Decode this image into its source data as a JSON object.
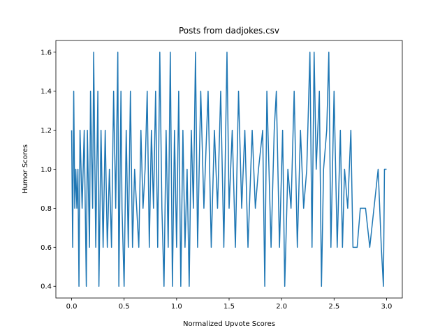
{
  "chart_data": {
    "type": "line",
    "title": "Posts from dadjokes.csv",
    "x_label": "Normalized Upvote Scores",
    "y_label": "Humor Scores",
    "color": "#1f77b4",
    "x": [
      0.0,
      0.01,
      0.02,
      0.03,
      0.04,
      0.05,
      0.06,
      0.07,
      0.08,
      0.1,
      0.12,
      0.14,
      0.15,
      0.17,
      0.18,
      0.2,
      0.21,
      0.23,
      0.25,
      0.26,
      0.28,
      0.3,
      0.32,
      0.34,
      0.36,
      0.38,
      0.4,
      0.42,
      0.44,
      0.45,
      0.47,
      0.48,
      0.5,
      0.52,
      0.54,
      0.56,
      0.58,
      0.6,
      0.62,
      0.64,
      0.66,
      0.68,
      0.7,
      0.72,
      0.74,
      0.76,
      0.78,
      0.8,
      0.82,
      0.84,
      0.86,
      0.88,
      0.9,
      0.92,
      0.94,
      0.96,
      0.98,
      1.0,
      1.02,
      1.04,
      1.06,
      1.08,
      1.1,
      1.12,
      1.14,
      1.16,
      1.18,
      1.2,
      1.23,
      1.26,
      1.3,
      1.33,
      1.36,
      1.39,
      1.42,
      1.45,
      1.48,
      1.5,
      1.53,
      1.56,
      1.59,
      1.62,
      1.65,
      1.68,
      1.72,
      1.75,
      1.78,
      1.82,
      1.84,
      1.86,
      1.9,
      1.93,
      1.95,
      1.98,
      2.01,
      2.03,
      2.06,
      2.09,
      2.12,
      2.15,
      2.18,
      2.21,
      2.24,
      2.27,
      2.29,
      2.31,
      2.33,
      2.36,
      2.38,
      2.4,
      2.43,
      2.45,
      2.47,
      2.5,
      2.53,
      2.56,
      2.58,
      2.6,
      2.63,
      2.66,
      2.68,
      2.72,
      2.75,
      2.8,
      2.84,
      2.88,
      2.92,
      2.95,
      2.97,
      2.98,
      3.0
    ],
    "values": [
      1.2,
      0.6,
      1.4,
      0.8,
      1.0,
      0.8,
      1.0,
      0.4,
      1.2,
      0.8,
      1.2,
      0.4,
      1.2,
      0.6,
      1.4,
      0.8,
      1.6,
      0.6,
      1.4,
      0.4,
      1.2,
      0.6,
      1.2,
      0.6,
      1.0,
      0.6,
      1.4,
      0.8,
      1.6,
      0.4,
      1.4,
      0.8,
      0.4,
      1.2,
      0.6,
      1.4,
      0.6,
      1.0,
      0.8,
      0.6,
      1.2,
      0.8,
      1.0,
      1.4,
      0.6,
      1.2,
      0.8,
      1.4,
      0.6,
      1.6,
      0.8,
      0.4,
      1.2,
      0.6,
      1.6,
      0.4,
      1.2,
      0.6,
      1.4,
      0.4,
      1.2,
      0.6,
      1.0,
      0.4,
      1.2,
      0.8,
      1.6,
      0.6,
      1.4,
      0.8,
      1.4,
      0.6,
      1.2,
      0.8,
      1.4,
      0.6,
      1.6,
      0.8,
      1.2,
      0.6,
      1.4,
      0.8,
      1.2,
      0.6,
      1.2,
      0.8,
      1.0,
      1.2,
      0.4,
      1.4,
      0.6,
      1.2,
      1.4,
      0.6,
      1.2,
      0.4,
      1.0,
      0.8,
      1.4,
      0.6,
      1.2,
      0.8,
      1.0,
      1.6,
      0.6,
      1.6,
      1.0,
      1.4,
      0.4,
      1.0,
      1.2,
      1.6,
      0.6,
      1.4,
      0.6,
      1.2,
      0.6,
      1.0,
      0.8,
      1.2,
      0.6,
      0.6,
      0.8,
      0.8,
      0.6,
      0.8,
      1.0,
      0.6,
      0.4,
      1.0,
      1.0
    ],
    "xlim": [
      -0.15,
      3.15
    ],
    "xticks": [
      {
        "value": 0,
        "label": "0.0"
      },
      0.5,
      {
        "value": 1,
        "label": "1.0"
      },
      1.5,
      {
        "value": 2,
        "label": "2.0"
      },
      2.5,
      {
        "value": 3,
        "label": "3.0"
      }
    ],
    "ylim": [
      0.34,
      1.66
    ],
    "yticks": [
      0.4,
      0.6,
      0.8,
      {
        "value": 1,
        "label": "1.0"
      },
      1.2,
      1.4,
      1.6
    ]
  }
}
